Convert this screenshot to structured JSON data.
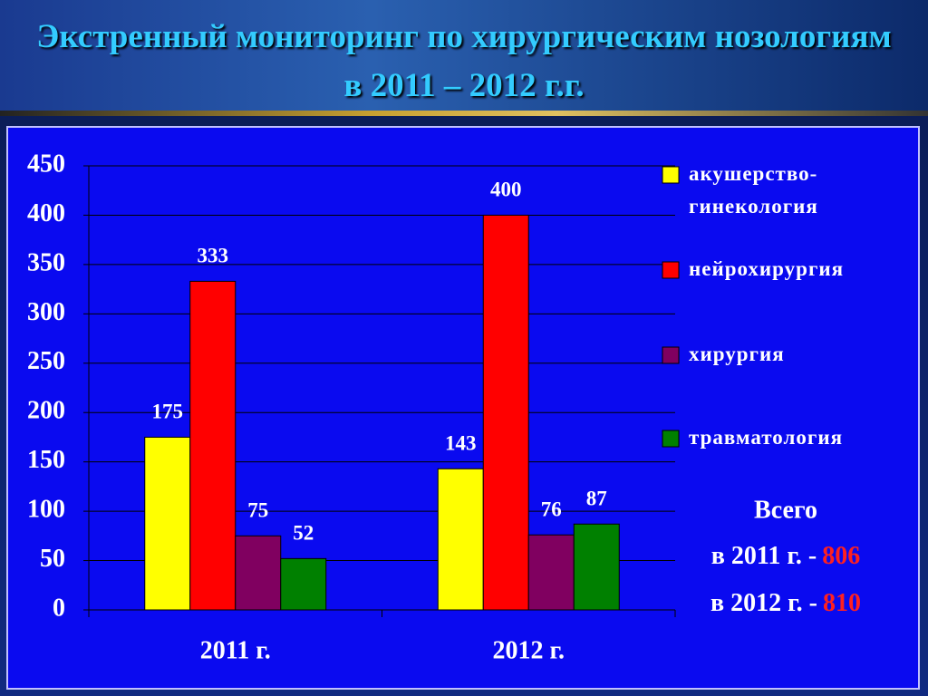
{
  "chart_data": {
    "type": "bar",
    "title": "Экстренный мониторинг по хирургическим нозологиям в 2011 – 2012 г.г.",
    "categories": [
      "2011 г.",
      "2012 г."
    ],
    "series": [
      {
        "name": "акушерство-гинекология",
        "color": "#ffff00",
        "values": [
          175,
          143
        ]
      },
      {
        "name": "нейрохирургия",
        "color": "#ff0000",
        "values": [
          333,
          400
        ]
      },
      {
        "name": "хирургия",
        "color": "#800060",
        "values": [
          75,
          76
        ]
      },
      {
        "name": "травматология",
        "color": "#008000",
        "values": [
          52,
          87
        ]
      }
    ],
    "ylim": [
      0,
      450
    ],
    "yticks": [
      0,
      50,
      100,
      150,
      200,
      250,
      300,
      350,
      400,
      450
    ],
    "grid": true,
    "totals": {
      "title": "Всего",
      "items": [
        {
          "label": "в 2011 г. -",
          "value": 806
        },
        {
          "label": "в 2012 г. -",
          "value": 810
        }
      ]
    }
  }
}
